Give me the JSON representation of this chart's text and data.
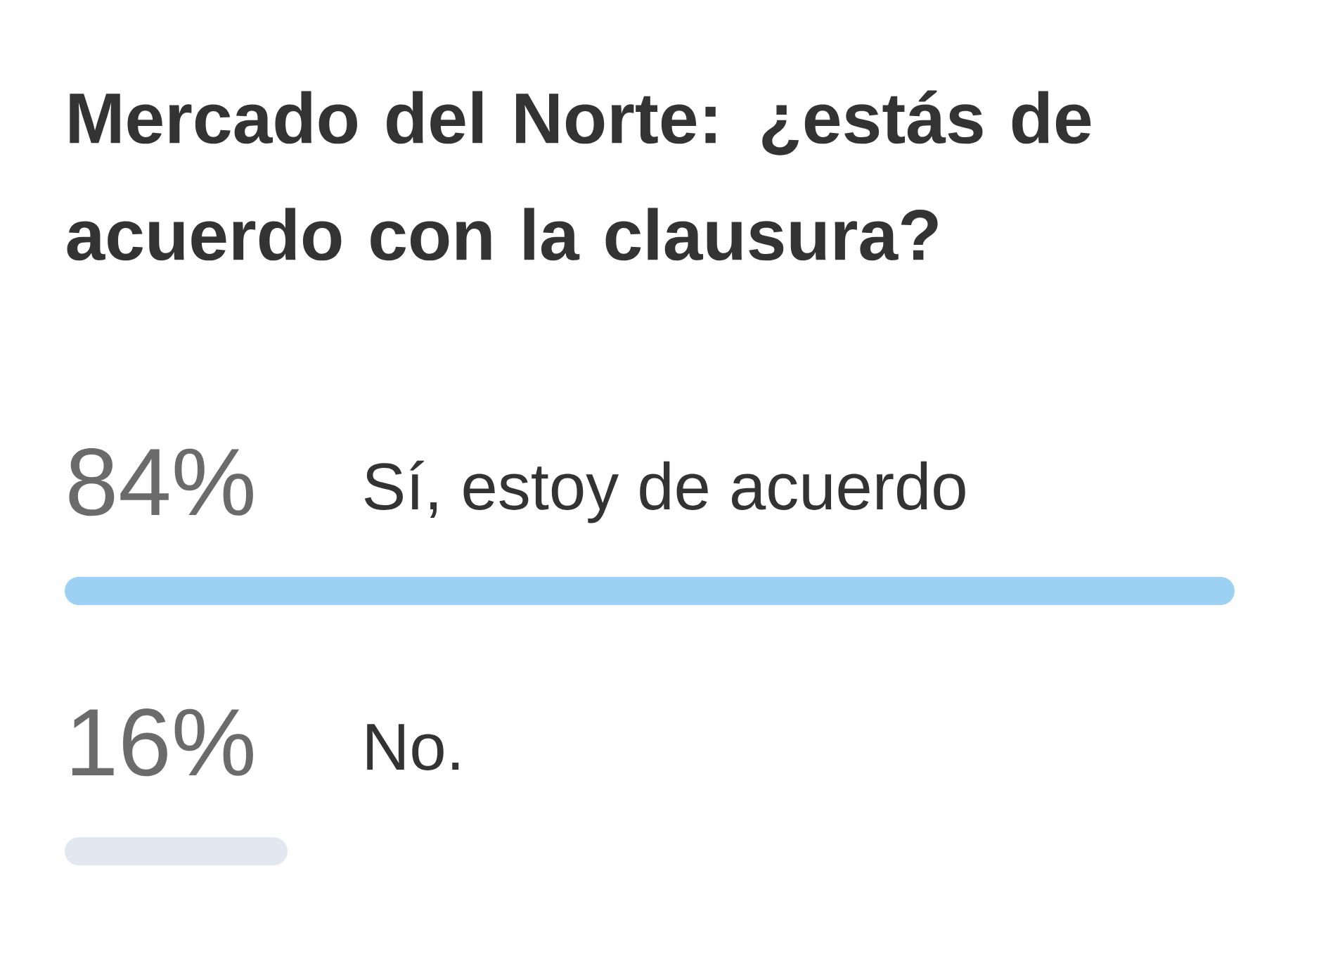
{
  "chart_data": {
    "type": "bar",
    "orientation": "horizontal",
    "title": "Mercado del Norte: ¿estás de acuerdo con la clausura?",
    "categories": [
      "Sí, estoy de acuerdo",
      "No."
    ],
    "values": [
      84,
      16
    ],
    "colors": [
      "#9dd1f4",
      "#e2e8ef"
    ],
    "value_labels": [
      "84%",
      "16%"
    ],
    "xlim": [
      0,
      84
    ]
  }
}
